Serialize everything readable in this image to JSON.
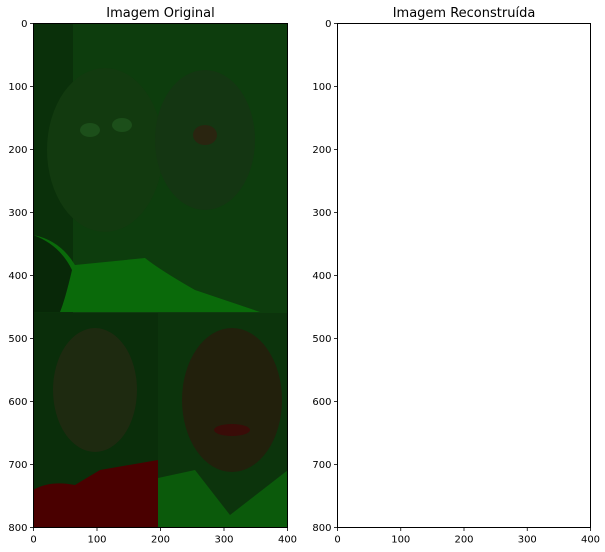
{
  "chart_data": [
    {
      "type": "image",
      "title": "Imagem Original",
      "image_width": 400,
      "image_height": 800,
      "xlim": [
        0,
        400
      ],
      "ylim": [
        800,
        0
      ],
      "xticks": [
        0,
        100,
        200,
        300,
        400
      ],
      "yticks": [
        0,
        100,
        200,
        300,
        400,
        500,
        600,
        700,
        800
      ],
      "grid": false,
      "colors": {
        "background": "#0d3d0d",
        "panel_bottom": "#0a2e0a",
        "highlight_green": "#0a6a0a",
        "red_region": "#4a0000"
      }
    },
    {
      "type": "image",
      "title": "Imagem Reconstruída",
      "image_width": 400,
      "image_height": 800,
      "xlim": [
        0,
        400
      ],
      "ylim": [
        800,
        0
      ],
      "xticks": [
        0,
        100,
        200,
        300,
        400
      ],
      "yticks": [
        0,
        100,
        200,
        300,
        400,
        500,
        600,
        700,
        800
      ],
      "grid": false,
      "colors": {
        "background": "#ffffff"
      }
    }
  ]
}
